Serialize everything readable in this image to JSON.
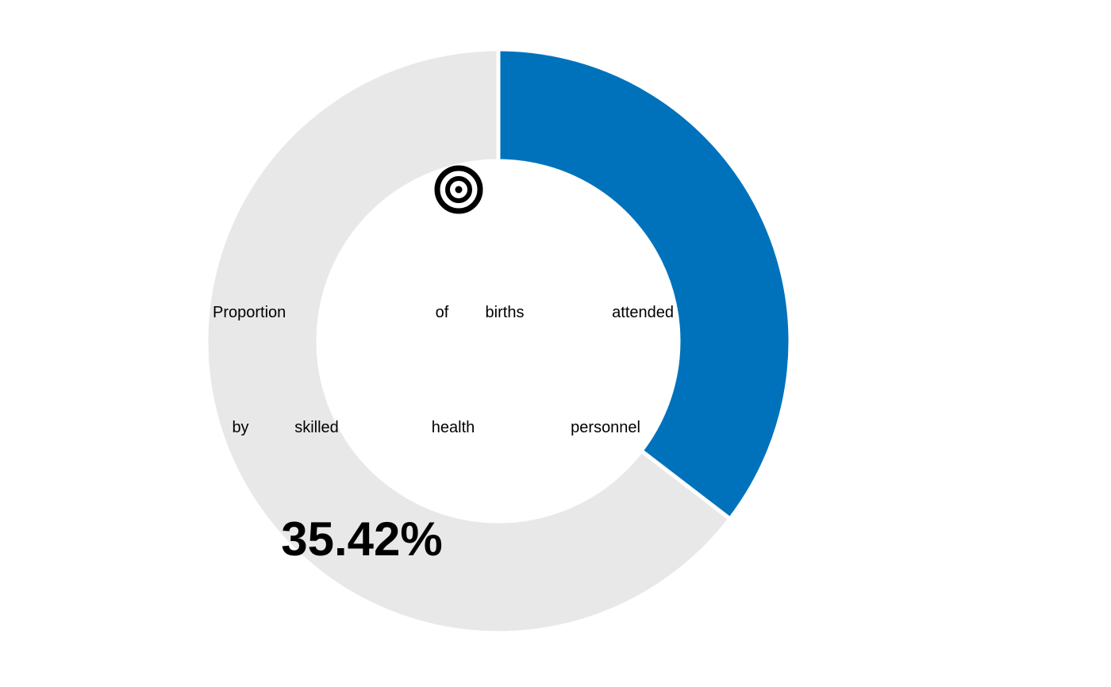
{
  "chart_data": {
    "type": "pie",
    "title": "",
    "center_label": "Proportion of births attended by skilled health personnel",
    "value_label": "35.42%",
    "slices": [
      {
        "label": "Proportion of births attended by skilled health personnel",
        "value": 35.42,
        "color": "#0072bc"
      },
      {
        "label": "",
        "value": 64.58,
        "color": "#e8e8e8"
      }
    ],
    "icon": "target-icon",
    "legend": "none"
  }
}
